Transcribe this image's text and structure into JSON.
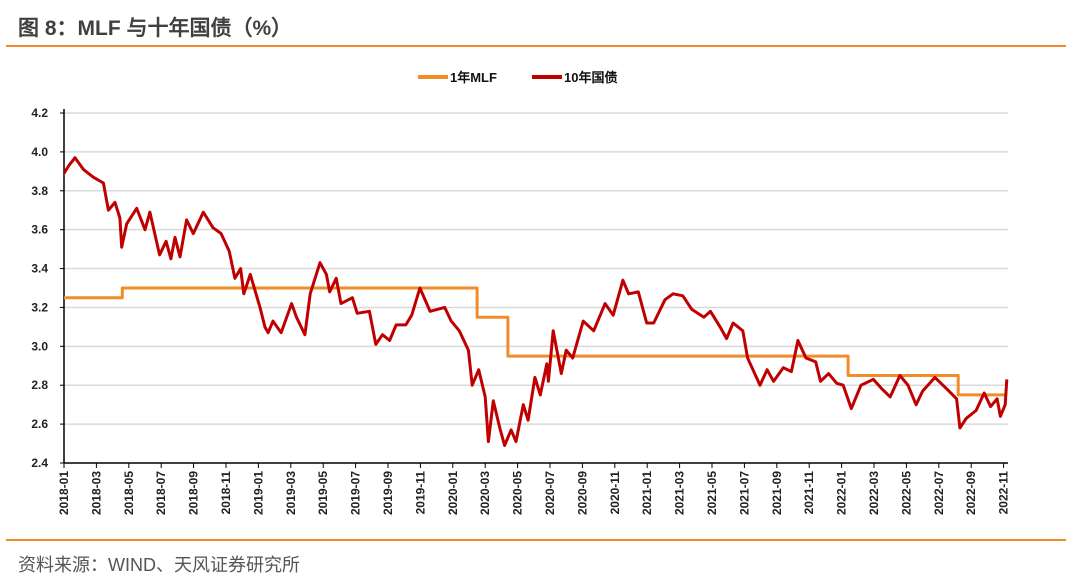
{
  "header": {
    "title": "图 8：MLF 与十年国债（%）"
  },
  "footer": {
    "source": "资料来源：WIND、天风证券研究所"
  },
  "chart_data": {
    "type": "line",
    "title": "图 8：MLF 与十年国债（%）",
    "xlabel": "",
    "ylabel": "",
    "x_unit": "months since 2018-01",
    "ylim": [
      2.4,
      4.2
    ],
    "yticks": [
      "2.4",
      "2.6",
      "2.8",
      "3.0",
      "3.2",
      "3.4",
      "3.6",
      "3.8",
      "4.0",
      "4.2"
    ],
    "xticks": [
      "2018-01",
      "2018-03",
      "2018-05",
      "2018-07",
      "2018-09",
      "2018-11",
      "2019-01",
      "2019-03",
      "2019-05",
      "2019-07",
      "2019-09",
      "2019-11",
      "2020-01",
      "2020-03",
      "2020-05",
      "2020-07",
      "2020-09",
      "2020-11",
      "2021-01",
      "2021-03",
      "2021-05",
      "2021-07",
      "2021-09",
      "2021-11",
      "2022-01",
      "2022-03",
      "2022-05",
      "2022-07",
      "2022-09",
      "2022-11"
    ],
    "grid": true,
    "legend_position": "top-center",
    "series": [
      {
        "name": "1年MLF",
        "color": "#f28c28",
        "points": [
          [
            0,
            3.25
          ],
          [
            3.6,
            3.25
          ],
          [
            3.6,
            3.3
          ],
          [
            25.5,
            3.3
          ],
          [
            25.5,
            3.15
          ],
          [
            27.4,
            3.15
          ],
          [
            27.4,
            2.95
          ],
          [
            48.4,
            2.95
          ],
          [
            48.4,
            2.85
          ],
          [
            55.2,
            2.85
          ],
          [
            55.2,
            2.75
          ],
          [
            58.2,
            2.75
          ]
        ]
      },
      {
        "name": "10年国债",
        "color": "#c00000",
        "points": [
          [
            0,
            3.89
          ],
          [
            0.3,
            3.93
          ],
          [
            0.68,
            3.97
          ],
          [
            1.2,
            3.91
          ],
          [
            1.81,
            3.87
          ],
          [
            2.43,
            3.84
          ],
          [
            2.74,
            3.7
          ],
          [
            3.15,
            3.74
          ],
          [
            3.45,
            3.66
          ],
          [
            3.56,
            3.51
          ],
          [
            3.87,
            3.63
          ],
          [
            4.49,
            3.71
          ],
          [
            5.0,
            3.6
          ],
          [
            5.3,
            3.69
          ],
          [
            5.9,
            3.47
          ],
          [
            6.3,
            3.54
          ],
          [
            6.6,
            3.45
          ],
          [
            6.85,
            3.56
          ],
          [
            7.16,
            3.46
          ],
          [
            7.57,
            3.65
          ],
          [
            7.98,
            3.58
          ],
          [
            8.6,
            3.69
          ],
          [
            9.2,
            3.61
          ],
          [
            9.7,
            3.58
          ],
          [
            10.2,
            3.49
          ],
          [
            10.55,
            3.35
          ],
          [
            10.9,
            3.4
          ],
          [
            11.1,
            3.27
          ],
          [
            11.5,
            3.37
          ],
          [
            12.1,
            3.2
          ],
          [
            12.4,
            3.1
          ],
          [
            12.6,
            3.07
          ],
          [
            12.9,
            3.13
          ],
          [
            13.4,
            3.07
          ],
          [
            14.05,
            3.22
          ],
          [
            14.35,
            3.15
          ],
          [
            14.87,
            3.06
          ],
          [
            15.2,
            3.27
          ],
          [
            15.8,
            3.43
          ],
          [
            16.2,
            3.37
          ],
          [
            16.4,
            3.28
          ],
          [
            16.8,
            3.35
          ],
          [
            17.1,
            3.22
          ],
          [
            17.8,
            3.25
          ],
          [
            18.1,
            3.17
          ],
          [
            18.85,
            3.18
          ],
          [
            19.25,
            3.01
          ],
          [
            19.66,
            3.06
          ],
          [
            20.1,
            3.03
          ],
          [
            20.5,
            3.11
          ],
          [
            21.1,
            3.11
          ],
          [
            21.46,
            3.16
          ],
          [
            21.97,
            3.3
          ],
          [
            22.6,
            3.18
          ],
          [
            23.5,
            3.2
          ],
          [
            23.9,
            3.13
          ],
          [
            24.4,
            3.08
          ],
          [
            24.96,
            2.98
          ],
          [
            25.2,
            2.8
          ],
          [
            25.6,
            2.88
          ],
          [
            26.0,
            2.74
          ],
          [
            26.2,
            2.51
          ],
          [
            26.5,
            2.72
          ],
          [
            26.9,
            2.58
          ],
          [
            27.2,
            2.49
          ],
          [
            27.6,
            2.57
          ],
          [
            27.9,
            2.51
          ],
          [
            28.35,
            2.7
          ],
          [
            28.65,
            2.62
          ],
          [
            29.07,
            2.84
          ],
          [
            29.4,
            2.75
          ],
          [
            29.8,
            2.91
          ],
          [
            29.9,
            2.82
          ],
          [
            30.2,
            3.08
          ],
          [
            30.7,
            2.86
          ],
          [
            31.0,
            2.98
          ],
          [
            31.4,
            2.94
          ],
          [
            32.05,
            3.13
          ],
          [
            32.7,
            3.08
          ],
          [
            33.4,
            3.22
          ],
          [
            33.9,
            3.16
          ],
          [
            34.5,
            3.34
          ],
          [
            34.85,
            3.27
          ],
          [
            35.45,
            3.28
          ],
          [
            35.97,
            3.12
          ],
          [
            36.4,
            3.12
          ],
          [
            37.1,
            3.24
          ],
          [
            37.6,
            3.27
          ],
          [
            38.2,
            3.26
          ],
          [
            38.75,
            3.19
          ],
          [
            39.5,
            3.15
          ],
          [
            39.9,
            3.18
          ],
          [
            40.5,
            3.1
          ],
          [
            40.9,
            3.04
          ],
          [
            41.3,
            3.12
          ],
          [
            41.9,
            3.08
          ],
          [
            42.2,
            2.94
          ],
          [
            42.96,
            2.8
          ],
          [
            43.4,
            2.88
          ],
          [
            43.8,
            2.82
          ],
          [
            44.4,
            2.89
          ],
          [
            44.9,
            2.87
          ],
          [
            45.3,
            3.03
          ],
          [
            45.8,
            2.94
          ],
          [
            46.4,
            2.92
          ],
          [
            46.7,
            2.82
          ],
          [
            47.2,
            2.86
          ],
          [
            47.7,
            2.81
          ],
          [
            48.1,
            2.8
          ],
          [
            48.6,
            2.68
          ],
          [
            49.2,
            2.8
          ],
          [
            49.96,
            2.83
          ],
          [
            50.5,
            2.78
          ],
          [
            51.0,
            2.74
          ],
          [
            51.6,
            2.85
          ],
          [
            52.1,
            2.8
          ],
          [
            52.6,
            2.7
          ],
          [
            53.0,
            2.77
          ],
          [
            53.76,
            2.84
          ],
          [
            54.5,
            2.78
          ],
          [
            55.1,
            2.73
          ],
          [
            55.3,
            2.58
          ],
          [
            55.7,
            2.63
          ],
          [
            56.3,
            2.67
          ],
          [
            56.8,
            2.76
          ],
          [
            57.2,
            2.69
          ],
          [
            57.6,
            2.73
          ],
          [
            57.8,
            2.64
          ],
          [
            58.1,
            2.7
          ],
          [
            58.2,
            2.83
          ]
        ]
      }
    ]
  }
}
